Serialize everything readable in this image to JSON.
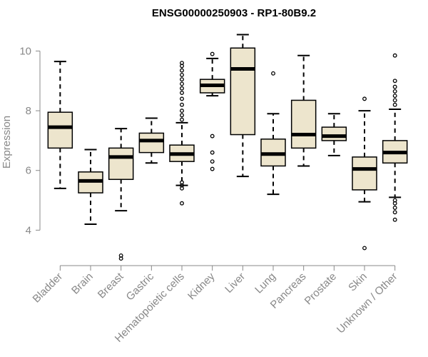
{
  "chart_data": {
    "type": "boxplot",
    "title": "ENSG00000250903 - RP1-80B9.2",
    "xlabel": "",
    "ylabel": "Expression",
    "ylim": [
      3.1,
      10.8
    ],
    "yticks": [
      4,
      6,
      8,
      10
    ],
    "box_fill": "#ede5cd",
    "categories": [
      "Bladder",
      "Brain",
      "Breast",
      "Gastric",
      "Hematopoietic cells",
      "Kidney",
      "Liver",
      "Lung",
      "Pancreas",
      "Prostate",
      "Skin",
      "Unknown / Other"
    ],
    "boxes": [
      {
        "name": "Bladder",
        "whisker_low": 5.4,
        "q1": 6.75,
        "median": 7.45,
        "q3": 7.95,
        "whisker_high": 9.65,
        "outliers": []
      },
      {
        "name": "Brain",
        "whisker_low": 4.2,
        "q1": 5.25,
        "median": 5.65,
        "q3": 5.95,
        "whisker_high": 6.7,
        "outliers": []
      },
      {
        "name": "Breast",
        "whisker_low": 4.65,
        "q1": 5.7,
        "median": 6.45,
        "q3": 6.75,
        "whisker_high": 7.4,
        "outliers": [
          3.05,
          3.15
        ]
      },
      {
        "name": "Gastric",
        "whisker_low": 6.25,
        "q1": 6.6,
        "median": 7.0,
        "q3": 7.25,
        "whisker_high": 7.75,
        "outliers": []
      },
      {
        "name": "Hematopoietic cells",
        "whisker_low": 5.5,
        "q1": 6.3,
        "median": 6.55,
        "q3": 6.85,
        "whisker_high": 7.6,
        "outliers": [
          4.9,
          5.4,
          5.5,
          5.6,
          7.7,
          7.85,
          8.0,
          8.2,
          8.4,
          8.6,
          8.75,
          8.9,
          9.05,
          9.2,
          9.35,
          9.5,
          9.6
        ]
      },
      {
        "name": "Kidney",
        "whisker_low": 8.5,
        "q1": 8.6,
        "median": 8.85,
        "q3": 9.05,
        "whisker_high": 9.75,
        "outliers": [
          9.9,
          7.15,
          6.6,
          6.3,
          6.05
        ]
      },
      {
        "name": "Liver",
        "whisker_low": 5.8,
        "q1": 7.2,
        "median": 9.4,
        "q3": 10.1,
        "whisker_high": 10.55,
        "outliers": []
      },
      {
        "name": "Lung",
        "whisker_low": 5.2,
        "q1": 6.15,
        "median": 6.55,
        "q3": 7.05,
        "whisker_high": 7.9,
        "outliers": [
          9.25
        ]
      },
      {
        "name": "Pancreas",
        "whisker_low": 6.15,
        "q1": 6.75,
        "median": 7.2,
        "q3": 8.35,
        "whisker_high": 9.85,
        "outliers": []
      },
      {
        "name": "Prostate",
        "whisker_low": 6.5,
        "q1": 7.0,
        "median": 7.15,
        "q3": 7.45,
        "whisker_high": 7.9,
        "outliers": []
      },
      {
        "name": "Skin",
        "whisker_low": 4.95,
        "q1": 5.35,
        "median": 6.05,
        "q3": 6.45,
        "whisker_high": 8.0,
        "outliers": [
          3.4,
          8.4
        ]
      },
      {
        "name": "Unknown / Other",
        "whisker_low": 5.1,
        "q1": 6.25,
        "median": 6.6,
        "q3": 7.0,
        "whisker_high": 8.05,
        "outliers": [
          4.35,
          4.6,
          4.75,
          4.9,
          5.0,
          8.2,
          8.35,
          8.5,
          8.65,
          8.8,
          9.0,
          9.85
        ]
      }
    ]
  }
}
